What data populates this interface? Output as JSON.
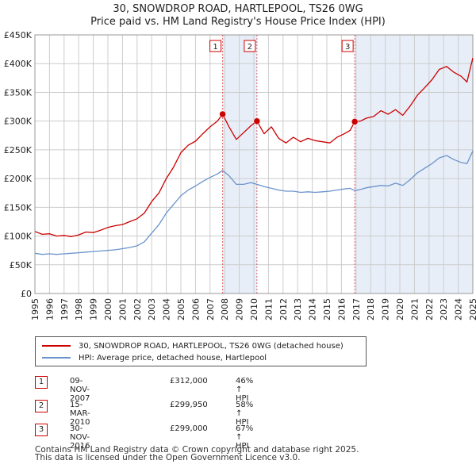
{
  "title_line1": "30, SNOWDROP ROAD, HARTLEPOOL, TS26 0WG",
  "title_line2": "Price paid vs. HM Land Registry's House Price Index (HPI)",
  "legend": {
    "property": "30, SNOWDROP ROAD, HARTLEPOOL, TS26 0WG (detached house)",
    "hpi": "HPI: Average price, detached house, Hartlepool"
  },
  "sales": [
    {
      "num": "1",
      "date": "09-NOV-2007",
      "price": "£312,000",
      "hpi": "46% ↑ HPI"
    },
    {
      "num": "2",
      "date": "15-MAR-2010",
      "price": "£299,950",
      "hpi": "58% ↑ HPI"
    },
    {
      "num": "3",
      "date": "30-NOV-2016",
      "price": "£299,000",
      "hpi": "67% ↑ HPI"
    }
  ],
  "footer_line1": "Contains HM Land Registry data © Crown copyright and database right 2025.",
  "footer_line2": "This data is licensed under the Open Government Licence v3.0.",
  "colors": {
    "property": "#cc0000",
    "hpi": "#6a93cc",
    "shade": "#e8eef8",
    "grid": "#cccccc"
  },
  "chart_data": {
    "type": "line",
    "title": "30, SNOWDROP ROAD, HARTLEPOOL, TS26 0WG — Price paid vs. HM Land Registry's House Price Index (HPI)",
    "xlim": [
      1995,
      2025
    ],
    "ylim": [
      0,
      450000
    ],
    "xticks": [
      1995,
      1996,
      1997,
      1998,
      1999,
      2000,
      2001,
      2002,
      2003,
      2004,
      2005,
      2006,
      2007,
      2008,
      2009,
      2010,
      2011,
      2012,
      2013,
      2014,
      2015,
      2016,
      2017,
      2018,
      2019,
      2020,
      2021,
      2022,
      2023,
      2024,
      2025
    ],
    "yticks": [
      0,
      50000,
      100000,
      150000,
      200000,
      250000,
      300000,
      350000,
      400000,
      450000
    ],
    "ytick_labels": [
      "£0",
      "£50K",
      "£100K",
      "£150K",
      "£200K",
      "£250K",
      "£300K",
      "£350K",
      "£400K",
      "£450K"
    ],
    "series": [
      {
        "name": "30, SNOWDROP ROAD, HARTLEPOOL, TS26 0WG (detached house)",
        "x": [
          1995,
          1995.5,
          1996,
          1996.5,
          1997,
          1997.5,
          1998,
          1998.5,
          1999,
          1999.5,
          2000,
          2000.5,
          2001,
          2001.5,
          2002,
          2002.5,
          2003,
          2003.5,
          2004,
          2004.5,
          2005,
          2005.5,
          2006,
          2006.5,
          2007,
          2007.5,
          2007.86,
          2008.3,
          2008.8,
          2009.3,
          2009.8,
          2010.21,
          2010.7,
          2011.2,
          2011.7,
          2012.2,
          2012.7,
          2013.2,
          2013.7,
          2014.2,
          2014.7,
          2015.2,
          2015.7,
          2016.2,
          2016.6,
          2016.91,
          2017.3,
          2017.7,
          2018.2,
          2018.7,
          2019.2,
          2019.7,
          2020.2,
          2020.7,
          2021.2,
          2021.7,
          2022.2,
          2022.7,
          2023.2,
          2023.7,
          2024.2,
          2024.6,
          2025
        ],
        "values": [
          108000,
          103000,
          104000,
          100000,
          101000,
          99000,
          102000,
          107000,
          106000,
          110000,
          115000,
          118000,
          120000,
          125000,
          130000,
          140000,
          160000,
          175000,
          200000,
          220000,
          245000,
          258000,
          265000,
          278000,
          290000,
          300000,
          312000,
          290000,
          268000,
          280000,
          292000,
          299950,
          278000,
          290000,
          270000,
          262000,
          272000,
          264000,
          270000,
          266000,
          264000,
          262000,
          272000,
          278000,
          284000,
          299000,
          300000,
          305000,
          308000,
          318000,
          312000,
          320000,
          310000,
          326000,
          345000,
          358000,
          372000,
          390000,
          395000,
          385000,
          378000,
          368000,
          410000
        ]
      },
      {
        "name": "HPI: Average price, detached house, Hartlepool",
        "x": [
          1995,
          1995.5,
          1996,
          1996.5,
          1997,
          1997.5,
          1998,
          1998.5,
          1999,
          1999.5,
          2000,
          2000.5,
          2001,
          2001.5,
          2002,
          2002.5,
          2003,
          2003.5,
          2004,
          2004.5,
          2005,
          2005.5,
          2006,
          2006.5,
          2007,
          2007.5,
          2007.86,
          2008.3,
          2008.8,
          2009.3,
          2009.8,
          2010.21,
          2010.7,
          2011.2,
          2011.7,
          2012.2,
          2012.7,
          2013.2,
          2013.7,
          2014.2,
          2014.7,
          2015.2,
          2015.7,
          2016.2,
          2016.6,
          2016.91,
          2017.3,
          2017.7,
          2018.2,
          2018.7,
          2019.2,
          2019.7,
          2020.2,
          2020.7,
          2021.2,
          2021.7,
          2022.2,
          2022.7,
          2023.2,
          2023.7,
          2024.2,
          2024.6,
          2025
        ],
        "values": [
          70000,
          68000,
          69000,
          68000,
          69000,
          70000,
          71000,
          72000,
          73000,
          74000,
          75000,
          76000,
          78000,
          80000,
          83000,
          90000,
          105000,
          120000,
          140000,
          155000,
          170000,
          180000,
          187000,
          195000,
          202000,
          208000,
          214000,
          205000,
          190000,
          190000,
          193000,
          190000,
          186000,
          183000,
          180000,
          178000,
          178000,
          176000,
          177000,
          176000,
          177000,
          178000,
          180000,
          182000,
          183000,
          179000,
          181000,
          184000,
          186000,
          188000,
          187000,
          192000,
          188000,
          198000,
          210000,
          218000,
          226000,
          236000,
          240000,
          233000,
          228000,
          226000,
          248000
        ]
      }
    ],
    "annotations": [
      {
        "label": "1",
        "x": 2007.86,
        "y": 312000
      },
      {
        "label": "2",
        "x": 2010.21,
        "y": 299950
      },
      {
        "label": "3",
        "x": 2016.91,
        "y": 299000
      }
    ],
    "shaded_ranges": [
      [
        2007.86,
        2010.21
      ],
      [
        2016.91,
        2025
      ]
    ]
  }
}
